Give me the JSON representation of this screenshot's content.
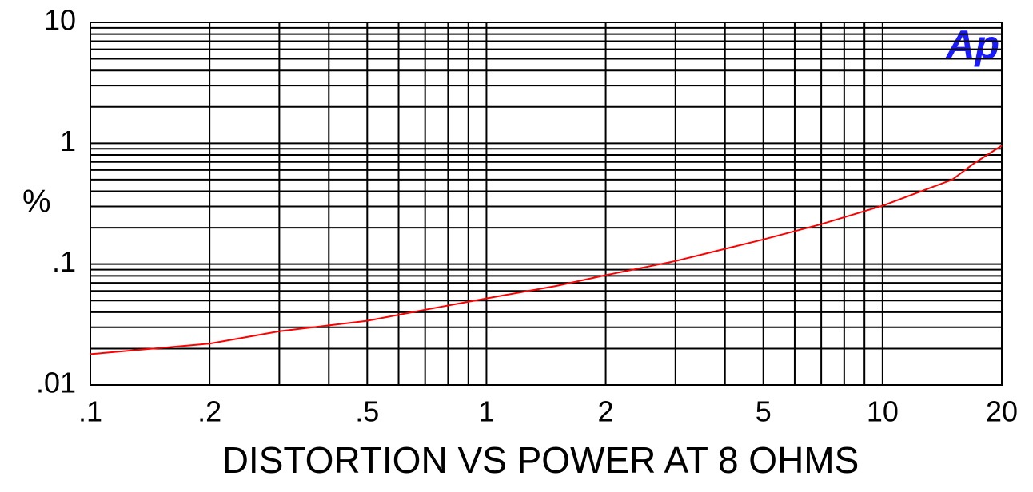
{
  "chart_data": {
    "type": "line",
    "xlabel": "DISTORTION VS POWER AT 8 OHMS",
    "ylabel": "%",
    "logo": "Ap",
    "log_x": true,
    "log_y": true,
    "grid": true,
    "color": "#ff0000",
    "x": [
      0.1,
      0.2,
      0.3,
      0.5,
      0.7,
      1,
      1.5,
      2,
      3,
      5,
      7,
      10,
      15,
      17,
      20
    ],
    "values": [
      0.018,
      0.022,
      0.0278,
      0.034,
      0.0419,
      0.052,
      0.066,
      0.081,
      0.106,
      0.16,
      0.214,
      0.304,
      0.5,
      0.68,
      0.955
    ],
    "xlim": [
      0.1,
      20
    ],
    "ylim": [
      0.01,
      10
    ],
    "xticks": [
      {
        "value": 0.1,
        "label": ".1"
      },
      {
        "value": 0.2,
        "label": ".2"
      },
      {
        "value": 0.5,
        "label": ".5"
      },
      1,
      2,
      5,
      10,
      20
    ],
    "yticks": [
      {
        "value": 0.01,
        "label": ".01"
      },
      {
        "value": 0.1,
        "label": ".1"
      },
      1,
      10
    ],
    "xgrid": [
      0.1,
      0.2,
      0.3,
      0.4,
      0.5,
      0.6,
      0.7,
      0.8,
      0.9,
      1,
      2,
      3,
      4,
      5,
      6,
      7,
      8,
      9,
      10,
      20
    ],
    "ygrid": [
      0.01,
      0.02,
      0.03,
      0.04,
      0.05,
      0.06,
      0.07,
      0.08,
      0.09,
      0.1,
      0.2,
      0.3,
      0.4,
      0.5,
      0.6,
      0.7,
      0.8,
      0.9,
      1,
      2,
      3,
      4,
      5,
      6,
      7,
      8,
      9,
      10
    ]
  }
}
